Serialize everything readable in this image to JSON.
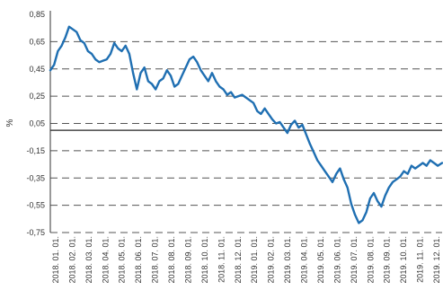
{
  "chart_data": {
    "type": "line",
    "title": "",
    "xlabel": "",
    "ylabel": "%",
    "ylim": [
      -0.75,
      0.85
    ],
    "yticks": [
      "0,85",
      "0,65",
      "0,45",
      "0,25",
      "0,05",
      "-0,15",
      "-0,35",
      "-0,55",
      "-0,75"
    ],
    "xticks": [
      "2018. 01. 01.",
      "2018. 02. 01.",
      "2018. 03. 01.",
      "2018. 04. 01.",
      "2018. 05. 01.",
      "2018. 06. 01.",
      "2018. 07. 01.",
      "2018. 08. 01.",
      "2018. 09. 01.",
      "2018. 10. 01.",
      "2018. 11. 01.",
      "2018. 12. 01.",
      "2019. 01. 01.",
      "2019. 02. 01.",
      "2019. 03. 01.",
      "2019. 04. 01.",
      "2019. 05. 01.",
      "2019. 06. 01.",
      "2019. 07. 01.",
      "2019. 08. 01.",
      "2019. 09. 01.",
      "2019. 10. 01.",
      "2019. 11. 01.",
      "2019. 12. 01."
    ],
    "grid": {
      "horizontal": "dashed",
      "vertical": false
    },
    "zero_line": true,
    "line_color": "#1F6FB2",
    "series": [
      {
        "x": [
          "2018-01-01",
          "2018-01-08",
          "2018-01-15",
          "2018-01-22",
          "2018-01-29",
          "2018-02-05",
          "2018-02-12",
          "2018-02-19",
          "2018-02-26",
          "2018-03-05",
          "2018-03-12",
          "2018-03-19",
          "2018-03-26",
          "2018-04-02",
          "2018-04-09",
          "2018-04-16",
          "2018-04-23",
          "2018-04-30",
          "2018-05-07",
          "2018-05-14",
          "2018-05-21",
          "2018-05-28",
          "2018-06-04",
          "2018-06-11",
          "2018-06-18",
          "2018-06-25",
          "2018-07-02",
          "2018-07-09",
          "2018-07-16",
          "2018-07-23",
          "2018-07-30",
          "2018-08-06",
          "2018-08-13",
          "2018-08-20",
          "2018-08-27",
          "2018-09-03",
          "2018-09-10",
          "2018-09-17",
          "2018-09-24",
          "2018-10-01",
          "2018-10-08",
          "2018-10-15",
          "2018-10-22",
          "2018-10-29",
          "2018-11-05",
          "2018-11-12",
          "2018-11-19",
          "2018-11-26",
          "2018-12-03",
          "2018-12-10",
          "2018-12-17",
          "2018-12-24",
          "2018-12-31",
          "2019-01-07",
          "2019-01-14",
          "2019-01-21",
          "2019-01-28",
          "2019-02-04",
          "2019-02-11",
          "2019-02-18",
          "2019-02-25",
          "2019-03-04",
          "2019-03-11",
          "2019-03-18",
          "2019-03-25",
          "2019-04-01",
          "2019-04-08",
          "2019-04-15",
          "2019-04-22",
          "2019-04-29",
          "2019-05-06",
          "2019-05-13",
          "2019-05-20",
          "2019-05-27",
          "2019-06-03",
          "2019-06-10",
          "2019-06-17",
          "2019-06-24",
          "2019-07-01",
          "2019-07-08",
          "2019-07-15",
          "2019-07-22",
          "2019-07-29",
          "2019-08-05",
          "2019-08-12",
          "2019-08-19",
          "2019-08-26",
          "2019-09-02",
          "2019-09-09",
          "2019-09-16",
          "2019-09-23",
          "2019-09-30",
          "2019-10-07",
          "2019-10-14",
          "2019-10-21",
          "2019-10-28",
          "2019-11-04",
          "2019-11-11",
          "2019-11-18",
          "2019-11-25",
          "2019-12-02",
          "2019-12-09",
          "2019-12-16",
          "2019-12-23",
          "2019-12-31"
        ],
        "values": [
          0.44,
          0.48,
          0.58,
          0.62,
          0.68,
          0.76,
          0.74,
          0.72,
          0.66,
          0.64,
          0.58,
          0.56,
          0.52,
          0.5,
          0.51,
          0.52,
          0.56,
          0.64,
          0.6,
          0.58,
          0.62,
          0.56,
          0.42,
          0.3,
          0.42,
          0.46,
          0.36,
          0.34,
          0.3,
          0.36,
          0.38,
          0.44,
          0.4,
          0.32,
          0.34,
          0.4,
          0.46,
          0.52,
          0.54,
          0.5,
          0.44,
          0.4,
          0.36,
          0.42,
          0.36,
          0.32,
          0.3,
          0.26,
          0.28,
          0.24,
          0.25,
          0.26,
          0.24,
          0.22,
          0.2,
          0.14,
          0.12,
          0.16,
          0.12,
          0.08,
          0.05,
          0.06,
          0.02,
          -0.02,
          0.04,
          0.07,
          0.02,
          0.04,
          -0.03,
          -0.1,
          -0.16,
          -0.22,
          -0.26,
          -0.3,
          -0.34,
          -0.38,
          -0.32,
          -0.28,
          -0.36,
          -0.42,
          -0.54,
          -0.62,
          -0.68,
          -0.66,
          -0.6,
          -0.5,
          -0.46,
          -0.52,
          -0.56,
          -0.48,
          -0.42,
          -0.38,
          -0.36,
          -0.34,
          -0.3,
          -0.32,
          -0.26,
          -0.28,
          -0.26,
          -0.24,
          -0.26,
          -0.22,
          -0.24,
          -0.26,
          -0.24
        ]
      }
    ]
  }
}
